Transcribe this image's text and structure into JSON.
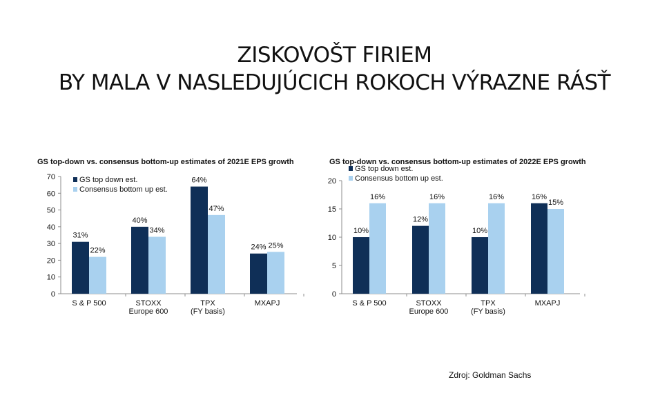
{
  "page": {
    "title_line1": "ZISKOVOŠT FIRIEM",
    "title_line2": "BY MALA V NASLEDUJÚCICH ROKOCH VÝRAZNE RÁSŤ",
    "source": "Zdroj: Goldman Sachs"
  },
  "colors": {
    "gs": "#0f2f57",
    "consensus": "#a9d1ef",
    "axis": "#8c8c8c"
  },
  "chart_data": [
    {
      "type": "bar",
      "title": "GS top-down vs. consensus bottom-up estimates of 2021E EPS growth",
      "categories": [
        [
          "S & P 500"
        ],
        [
          "STOXX",
          "Europe 600"
        ],
        [
          "TPX",
          "(FY basis)"
        ],
        [
          "MXAPJ"
        ]
      ],
      "series": [
        {
          "name": "GS top down est.",
          "values": [
            31,
            40,
            64,
            24
          ],
          "labels": [
            "31%",
            "40%",
            "64%",
            "24%"
          ]
        },
        {
          "name": "Consensus bottom up est.",
          "values": [
            22,
            34,
            47,
            25
          ],
          "labels": [
            "22%",
            "34%",
            "47%",
            "25%"
          ]
        }
      ],
      "ylim": [
        0,
        70
      ],
      "yticks": [
        0,
        10,
        20,
        30,
        40,
        50,
        60,
        70
      ],
      "ytick_labels": [
        "0",
        "10",
        "20",
        "30",
        "40",
        "50",
        "60",
        "70"
      ],
      "legend": "top-left"
    },
    {
      "type": "bar",
      "title": "GS top-down vs. consensus bottom-up estimates of 2022E EPS growth",
      "categories": [
        [
          "S & P 500"
        ],
        [
          "STOXX",
          "Europe 600"
        ],
        [
          "TPX",
          "(FY basis)"
        ],
        [
          "MXAPJ"
        ]
      ],
      "series": [
        {
          "name": "GS top down est.",
          "values": [
            10,
            12,
            10,
            16
          ],
          "labels": [
            "10%",
            "12%",
            "10%",
            "16%"
          ]
        },
        {
          "name": "Consensus bottom up est.",
          "values": [
            16,
            16,
            16,
            15
          ],
          "labels": [
            "16%",
            "16%",
            "16%",
            "15%"
          ]
        }
      ],
      "ylim": [
        0,
        20
      ],
      "yticks": [
        0,
        5,
        10,
        15,
        20
      ],
      "ytick_labels": [
        "0",
        "5",
        "10",
        "15",
        "20"
      ],
      "legend": "top-left"
    }
  ]
}
